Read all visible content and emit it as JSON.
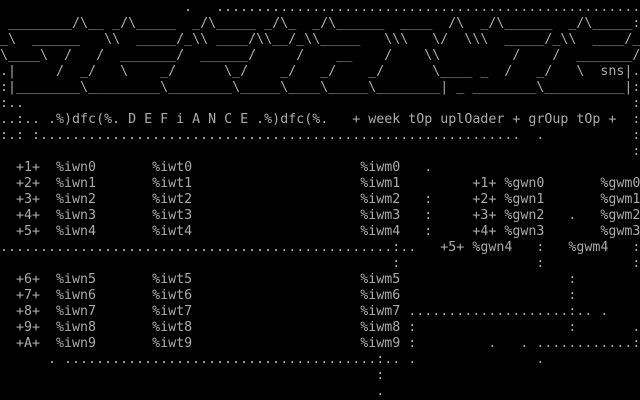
{
  "colors": {
    "background": "#000000",
    "text": "#aaaaaa"
  },
  "logo": {
    "signature": "sns",
    "lines": [
      "                       .   .....................................................",
      " ________/\\__ _/\\_____  _/\\_____ _/\\_  _/\\______  ____  /\\  _/\\______  _/\\_____:",
      "_\\  ______   \\\\  _____/_\\\\ ____/\\\\__/_\\\\_____   \\\\\\   \\/  \\\\\\  _____/_\\\\  ____/_",
      "\\____\\  /   /  _______/  ______/     /    __    /    \\\\         /    /  _______/",
      ".|     /  _/   \\    _/      \\_/    _/   _/    _/      \\____ _  /   _/   \\  sns|.",
      ":|________\\_________\\________\\_____\\____\\_____\\________| _ ________\\__________|:",
      ":..                                                                            :"
    ]
  },
  "header": {
    "title_line": "..:.. .%)dfc(%. D E F i A N C E .%)dfc(%.   + week tOp uplOader + grOup tOp +  :",
    "rule_line": ":.: :............................................................  .           :"
  },
  "body": {
    "lines": [
      "                                                                               :",
      "  +1+  %iwn0       %iwt0                     %iwm0   .                             :",
      "  +2+  %iwn1       %iwt1                     %iwm1         +1+ %gwn0       %gwm0   :",
      "  +3+  %iwn2       %iwt2                     %iwm2   :     +2+ %gwn1       %gwm1   :",
      "  +4+  %iwn3       %iwt3                     %iwm3   :     +3+ %gwn2   .   %gwm2   :",
      "  +5+  %iwn4       %iwt4                     %iwm4   :     +4+ %gwn3       %gwm3   :",
      ".................................................:..   +5+ %gwn4   :   %gwm4   :",
      "                                                 :                 :           :",
      "  +6+  %iwn5       %iwt5                     %iwm5                     :           :",
      "  +7+  %iwn6       %iwt6                     %iwm6                     :           :",
      "  +8+  %iwn7       %iwt7                     %iwm7 ....................:.. .     ..:",
      "  +9+  %iwn8       %iwt8                     %iwm8 :                   :       ..:..",
      "  +A+  %iwn9       %iwt9                     %iwm9 :         .   . ............: :.:",
      "      . .......................................:.. .               .",
      "                                               :",
      "                                               ."
    ]
  }
}
